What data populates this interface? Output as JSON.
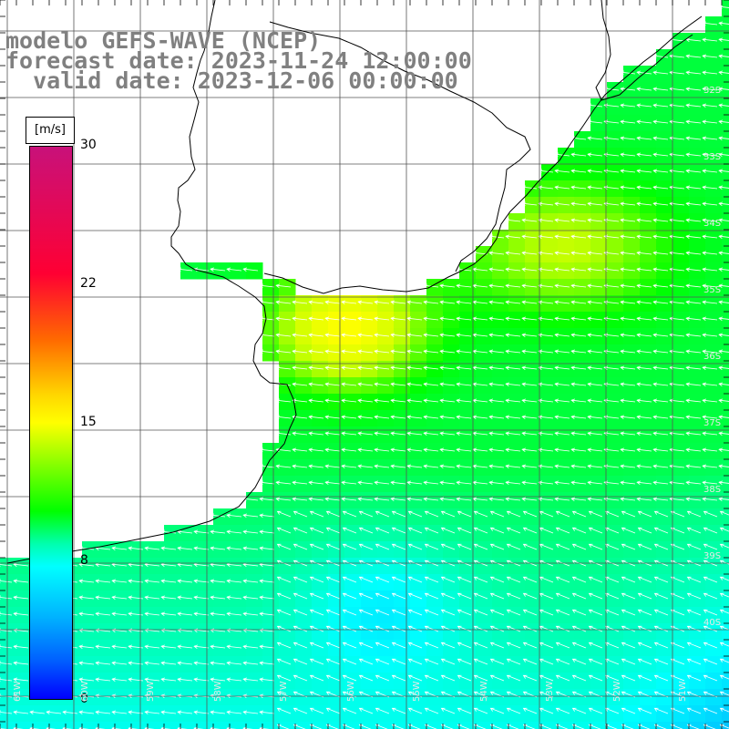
{
  "title": {
    "line1": "modelo GEFS-WAVE (NCEP)",
    "line2": "forecast date: 2023-11-24 12:00:00",
    "line3": "  valid date: 2023-12-06 00:00:00"
  },
  "colorbar": {
    "units": "[m/s]",
    "ticks": [
      "30",
      "22",
      "15",
      "8",
      "0"
    ],
    "range": [
      0,
      30
    ],
    "colors": [
      "#0000ff",
      "#00b4ff",
      "#00ffff",
      "#00ff00",
      "#ffff00",
      "#ff6a00",
      "#ff0033",
      "#c8117a"
    ]
  },
  "lat_labels": [
    "32S",
    "33S",
    "34S",
    "35S",
    "36S",
    "37S",
    "38S",
    "39S",
    "40S"
  ],
  "lon_labels": [
    "61W",
    "60W",
    "59W",
    "58W",
    "57W",
    "56W",
    "55W",
    "54W",
    "53W",
    "52W",
    "51W"
  ],
  "field": {
    "variable": "wind speed",
    "wind_direction": "from east / north-east (arrows pointing west)"
  }
}
